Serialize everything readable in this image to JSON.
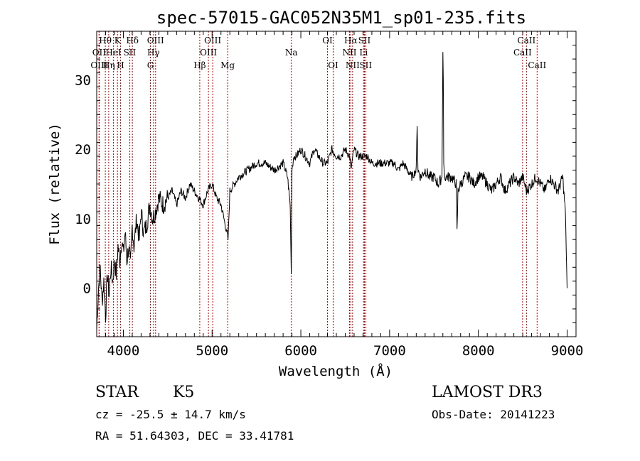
{
  "chart_data": {
    "type": "line",
    "title": "spec-57015-GAC052N35M1_sp01-235.fits",
    "xlabel": "Wavelength (Å)",
    "ylabel": "Flux (relative)",
    "xlim": [
      3700,
      9100
    ],
    "ylim": [
      -7,
      37
    ],
    "xticks": [
      4000,
      5000,
      6000,
      7000,
      8000,
      9000
    ],
    "yticks": [
      0,
      10,
      20,
      30
    ],
    "grid": false,
    "series": [
      {
        "name": "spectrum",
        "color": "#000000",
        "x": [
          3700,
          3720,
          3740,
          3760,
          3780,
          3800,
          3820,
          3840,
          3860,
          3880,
          3900,
          3920,
          3940,
          3960,
          3980,
          4000,
          4020,
          4040,
          4060,
          4080,
          4100,
          4120,
          4150,
          4180,
          4200,
          4230,
          4260,
          4300,
          4330,
          4360,
          4400,
          4450,
          4500,
          4550,
          4600,
          4650,
          4700,
          4750,
          4800,
          4850,
          4900,
          4950,
          5000,
          5050,
          5100,
          5150,
          5180,
          5200,
          5250,
          5300,
          5400,
          5500,
          5600,
          5700,
          5800,
          5850,
          5880,
          5892,
          5900,
          5920,
          5950,
          6000,
          6050,
          6100,
          6150,
          6200,
          6250,
          6300,
          6350,
          6400,
          6450,
          6500,
          6550,
          6563,
          6600,
          6650,
          6700,
          6750,
          6800,
          6850,
          6900,
          6950,
          7000,
          7050,
          7100,
          7150,
          7200,
          7250,
          7300,
          7310,
          7320,
          7350,
          7400,
          7450,
          7500,
          7550,
          7590,
          7600,
          7605,
          7610,
          7620,
          7650,
          7700,
          7750,
          7760,
          7770,
          7800,
          7850,
          7900,
          7950,
          8000,
          8050,
          8100,
          8150,
          8200,
          8250,
          8300,
          8350,
          8400,
          8450,
          8500,
          8542,
          8600,
          8650,
          8700,
          8750,
          8800,
          8850,
          8900,
          8950,
          8980,
          9000
        ],
        "y": [
          -6,
          0,
          3,
          -2,
          1,
          -4,
          2,
          -1,
          3,
          1,
          4,
          2,
          6,
          4,
          7,
          5,
          8,
          4,
          6,
          3,
          9,
          6,
          10,
          7,
          11,
          8,
          9,
          12,
          10,
          11,
          13,
          12,
          13,
          14,
          12,
          14,
          13,
          15,
          14,
          13,
          12,
          14,
          15,
          13,
          12,
          9,
          7,
          14,
          15,
          16,
          17,
          18,
          18,
          17,
          18,
          16,
          12,
          2,
          17,
          19,
          19,
          20,
          19,
          18,
          20,
          19,
          18,
          18,
          20,
          19,
          19,
          20,
          19,
          17,
          20,
          19,
          19,
          19,
          18,
          18,
          18,
          18,
          18,
          18,
          17,
          18,
          17,
          16,
          17,
          24,
          17,
          16,
          17,
          16,
          16,
          15,
          16,
          34,
          30,
          18,
          16,
          16,
          16,
          15,
          8,
          14,
          15,
          16,
          16,
          15,
          16,
          16,
          15,
          14,
          15,
          16,
          14,
          15,
          16,
          15,
          16,
          14,
          15,
          16,
          15,
          14,
          16,
          15,
          14,
          16,
          11,
          0
        ]
      }
    ],
    "emission_lines": [
      {
        "label": "Hθ",
        "x": 3797,
        "row": 1
      },
      {
        "label": "OII",
        "x": 3727,
        "row": 2
      },
      {
        "label": "OIII",
        "x": 3727,
        "row": 3
      },
      {
        "label": "Hη",
        "x": 3835,
        "row": 3
      },
      {
        "label": "HeI",
        "x": 3889,
        "row": 2
      },
      {
        "label": "K",
        "x": 3934,
        "row": 1
      },
      {
        "label": "SII",
        "x": 4072,
        "row": 2
      },
      {
        "label": "H",
        "x": 3969,
        "row": 3
      },
      {
        "label": "Hδ",
        "x": 4102,
        "row": 1
      },
      {
        "label": "OIII",
        "x": 4363,
        "row": 1
      },
      {
        "label": "Hγ",
        "x": 4340,
        "row": 2
      },
      {
        "label": "G",
        "x": 4305,
        "row": 3
      },
      {
        "label": "OIII",
        "x": 5007,
        "row": 1
      },
      {
        "label": "OIII",
        "x": 4959,
        "row": 2
      },
      {
        "label": "Hβ",
        "x": 4861,
        "row": 3
      },
      {
        "label": "Mg",
        "x": 5175,
        "row": 3
      },
      {
        "label": "Na",
        "x": 5893,
        "row": 2
      },
      {
        "label": "OI",
        "x": 6300,
        "row": 1
      },
      {
        "label": "OI",
        "x": 6364,
        "row": 3
      },
      {
        "label": "Hα",
        "x": 6563,
        "row": 1
      },
      {
        "label": "SII",
        "x": 6716,
        "row": 1
      },
      {
        "label": "NII",
        "x": 6548,
        "row": 2
      },
      {
        "label": "Li",
        "x": 6707,
        "row": 2
      },
      {
        "label": "NII",
        "x": 6583,
        "row": 3
      },
      {
        "label": "SII",
        "x": 6731,
        "row": 3
      },
      {
        "label": "CaII",
        "x": 8542,
        "row": 1
      },
      {
        "label": "CaII",
        "x": 8498,
        "row": 2
      },
      {
        "label": "CaII",
        "x": 8662,
        "row": 3
      }
    ]
  },
  "info": {
    "class": "STAR",
    "subclass": "K5",
    "survey": "LAMOST DR3",
    "cz": "cz = -25.5 ± 14.7 km/s",
    "obs_date": "Obs-Date: 20141223",
    "radec": "RA =  51.64303, DEC =  33.41781"
  }
}
